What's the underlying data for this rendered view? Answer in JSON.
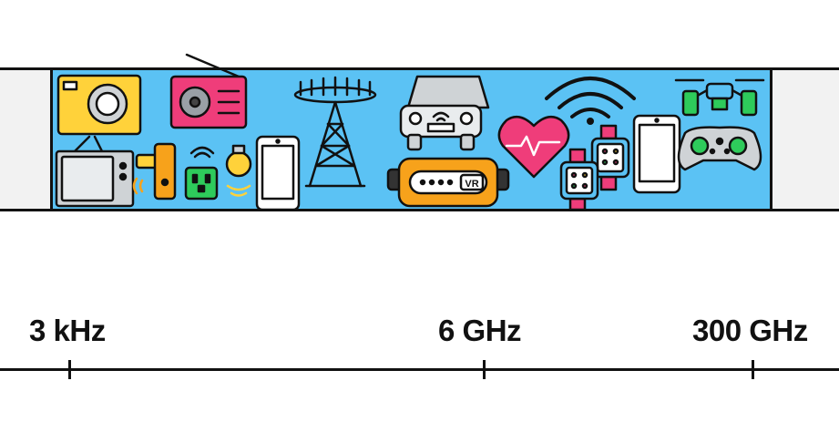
{
  "axis": {
    "labels": [
      {
        "id": "3khz",
        "text": "3 kHz"
      },
      {
        "id": "6ghz",
        "text": "6 GHz"
      },
      {
        "id": "300ghz",
        "text": "300 GHz"
      }
    ]
  },
  "devices": {
    "vr_headset_text": "VR"
  },
  "colors": {
    "band": "#5bc2f4",
    "yellow": "#ffd23a",
    "pink": "#ef3d7a",
    "orange": "#f7a21b",
    "green": "#2ecb5b",
    "white": "#ffffff",
    "grey": "#cfd3d6",
    "ink": "#111111"
  }
}
